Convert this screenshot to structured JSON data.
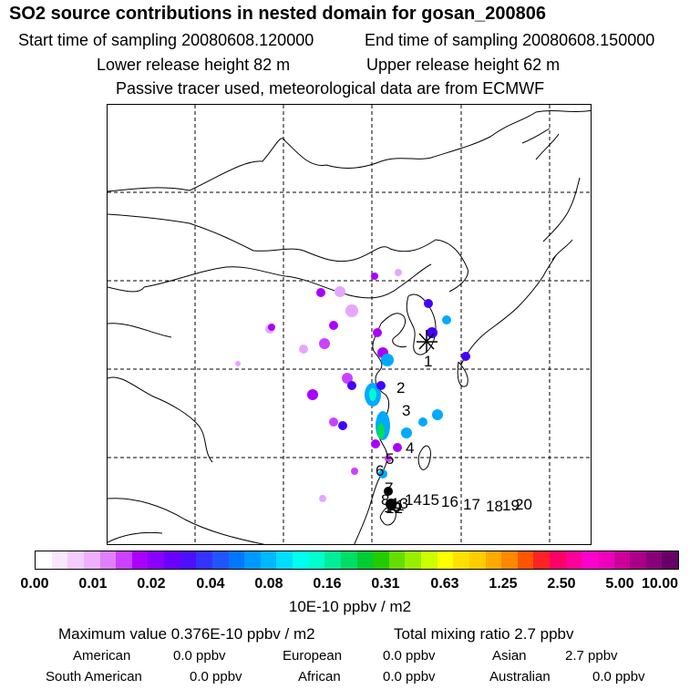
{
  "header": {
    "title": "SO2 source contributions in nested domain for gosan_200806",
    "start_label": "Start time of sampling 20080608.120000",
    "end_label": "End time of sampling 20080608.150000",
    "lower_release": "Lower release height   82 m",
    "upper_release": "Upper release height   62 m",
    "note": "Passive tracer used, meteorological data are from ECMWF"
  },
  "map": {
    "receptor_marker": "receptor-star",
    "trajectory_labels": [
      "1",
      "2",
      "3",
      "4",
      "5",
      "6",
      "7",
      "8",
      "9",
      "10",
      "11",
      "12",
      "13",
      "14",
      "15",
      "16",
      "17",
      "18",
      "19",
      "20"
    ],
    "plume_colors": [
      "#e6a6ff",
      "#aa00ff",
      "#4400ff",
      "#00aaff",
      "#00ffcc",
      "#00dd55"
    ]
  },
  "colorbar": {
    "colors": [
      "#ffffff",
      "#fbe6ff",
      "#f5ccff",
      "#eeb0ff",
      "#e080ff",
      "#cc40ff",
      "#aa00ff",
      "#8a00ff",
      "#6a00ff",
      "#4c10ff",
      "#3333ff",
      "#2255ff",
      "#0077ff",
      "#0099ff",
      "#00b8ff",
      "#00ddff",
      "#00ffee",
      "#00ffcc",
      "#00ee99",
      "#00dd66",
      "#00cc33",
      "#22cc00",
      "#66dd00",
      "#99ee00",
      "#ccff00",
      "#ffff00",
      "#ffe000",
      "#ffcc00",
      "#ffaa00",
      "#ff8800",
      "#ff5500",
      "#ff2222",
      "#ff0066",
      "#ff0099",
      "#ff00cc",
      "#ee00bb",
      "#cc0099",
      "#aa0088",
      "#880077",
      "#660066"
    ],
    "ticks": [
      "0.00",
      "0.01",
      "0.02",
      "0.04",
      "0.08",
      "0.16",
      "0.31",
      "0.63",
      "1.25",
      "2.50",
      "5.00",
      "10.00"
    ],
    "unit": "10E-10 ppbv / m2"
  },
  "summary": {
    "maximum_value": "Maximum value  0.376E-10 ppbv / m2",
    "total_mixing": "Total mixing ratio        2.7 ppbv",
    "american_label": "American",
    "american_value": "0.0 ppbv",
    "european_label": "European",
    "european_value": "0.0 ppbv",
    "asian_label": "Asian",
    "asian_value": "2.7 ppbv",
    "south_american_label": "South American",
    "south_american_value": "0.0 ppbv",
    "african_label": "African",
    "african_value": "0.0 ppbv",
    "australian_label": "Australian",
    "australian_value": "0.0 ppbv"
  }
}
